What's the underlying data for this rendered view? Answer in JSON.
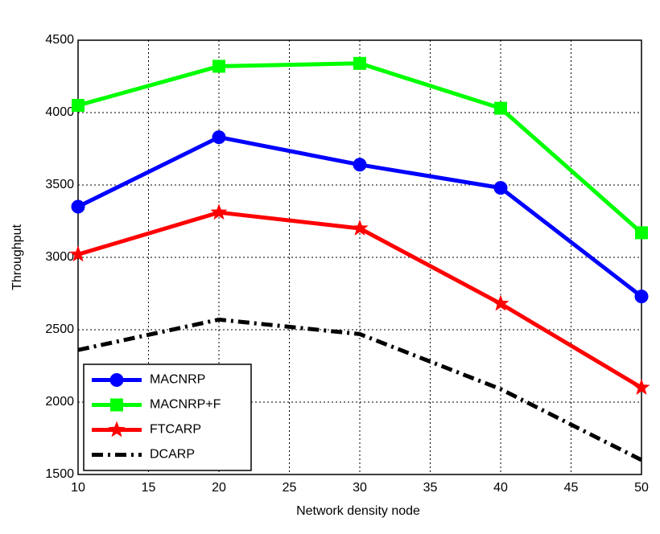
{
  "chart_data": {
    "type": "line",
    "x_label": "Network density node",
    "y_label": "Throughput",
    "x": [
      10,
      20,
      30,
      40,
      50
    ],
    "xlim": [
      10,
      50
    ],
    "xticks": [
      10,
      15,
      20,
      25,
      30,
      35,
      40,
      45,
      50
    ],
    "ylim": [
      1500,
      4500
    ],
    "yticks": [
      1500,
      2000,
      2500,
      3000,
      3500,
      4000,
      4500
    ],
    "grid": true,
    "legend": "lower left",
    "series": [
      {
        "name": "MACNRP",
        "color": "#0000ff",
        "marker": "circle",
        "linestyle": "solid",
        "values": [
          3350,
          3830,
          3640,
          3480,
          2730
        ]
      },
      {
        "name": "MACNRP+F",
        "color": "#00ff00",
        "marker": "square",
        "linestyle": "solid",
        "values": [
          4050,
          4320,
          4340,
          4030,
          3170
        ]
      },
      {
        "name": "FTCARP",
        "color": "#ff0000",
        "marker": "star",
        "linestyle": "solid",
        "values": [
          3020,
          3310,
          3200,
          2680,
          2100
        ]
      },
      {
        "name": "DCARP",
        "color": "#000000",
        "marker": "none",
        "linestyle": "dashdot",
        "values": [
          2360,
          2570,
          2470,
          2090,
          1600
        ]
      }
    ]
  }
}
